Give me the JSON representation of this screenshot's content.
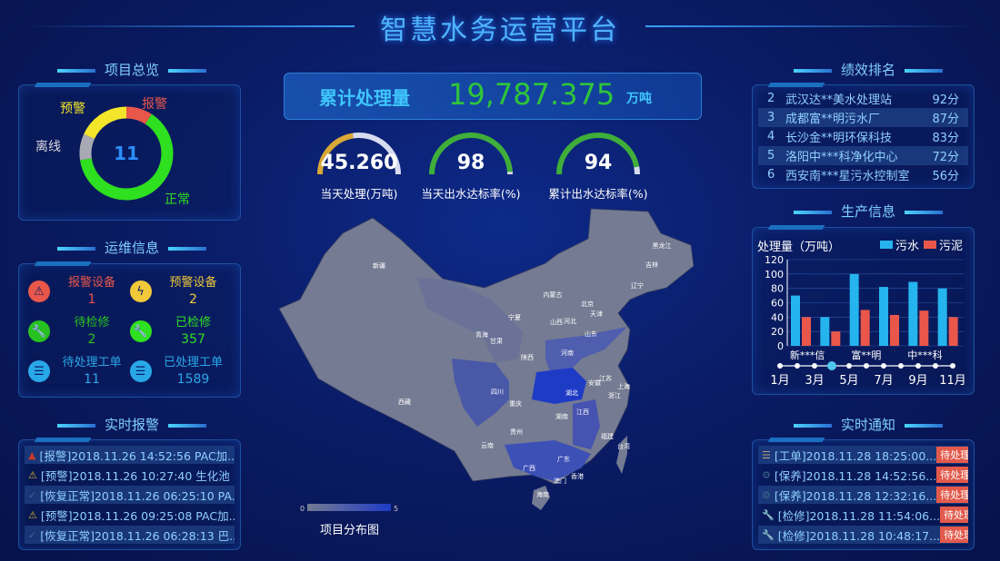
{
  "title": "智慧水务运营平台",
  "overview": {
    "heading": "项目总览",
    "total": "11",
    "segments": [
      {
        "label": "报警",
        "value": 1,
        "color": "#e8574a"
      },
      {
        "label": "正常",
        "value": 7,
        "color": "#2ee01f"
      },
      {
        "label": "离线",
        "value": 1,
        "color": "#a9a9b3"
      },
      {
        "label": "预警",
        "value": 2,
        "color": "#f3e52a"
      }
    ]
  },
  "ops": {
    "heading": "运维信息",
    "items": [
      {
        "label": "报警设备",
        "value": "1",
        "color": "#e8574a",
        "icon": "alarm-light-icon"
      },
      {
        "label": "预警设备",
        "value": "2",
        "color": "#f0c83a",
        "icon": "warning-light-icon"
      },
      {
        "label": "待检修",
        "value": "2",
        "color": "#27c21f",
        "icon": "wrench-icon"
      },
      {
        "label": "已检修",
        "value": "357",
        "color": "#2ee01f",
        "icon": "wrench-icon"
      },
      {
        "label": "待处理工单",
        "value": "11",
        "color": "#29a8e8",
        "icon": "document-icon"
      },
      {
        "label": "已处理工单",
        "value": "1589",
        "color": "#29a8e8",
        "icon": "document-icon"
      }
    ]
  },
  "alarms": {
    "heading": "实时报警",
    "items": [
      {
        "text": "[报警]2018.11.26 14:52:56 PAC加...",
        "icon": "alarm-icon"
      },
      {
        "text": "[预警]2018.11.26 10:27:40 生化池 ...",
        "icon": "warning-icon"
      },
      {
        "text": "[恢复正常]2018.11.26 06:25:10 PA...",
        "icon": "check-icon"
      },
      {
        "text": "[预警]2018.11.26 09:25:08 PAC加...",
        "icon": "warning-icon"
      },
      {
        "text": "[恢复正常]2018.11.26 06:28:13 巴...",
        "icon": "check-icon"
      }
    ]
  },
  "total": {
    "label": "累计处理量",
    "value": "19,787.375",
    "unit": "万吨"
  },
  "gauges": [
    {
      "value": "45.260",
      "label": "当天处理(万吨)",
      "fraction": 0.45,
      "color": "#d9a836"
    },
    {
      "value": "98",
      "label": "当天出水达标率(%)",
      "fraction": 0.98,
      "color": "#3fae3a"
    },
    {
      "value": "94",
      "label": "累计出水达标率(%)",
      "fraction": 0.94,
      "color": "#3fae3a"
    }
  ],
  "map": {
    "title": "项目分布图",
    "legend_min": "0",
    "legend_max": "5",
    "provinces": [
      "新疆",
      "西藏",
      "青海",
      "甘肃",
      "宁夏",
      "内蒙古",
      "黑龙江",
      "吉林",
      "辽宁",
      "北京",
      "天津",
      "河北",
      "山西",
      "山东",
      "河南",
      "陕西",
      "四川",
      "重庆",
      "湖北",
      "安徽",
      "江苏",
      "上海",
      "浙江",
      "湖南",
      "江西",
      "贵州",
      "云南",
      "广西",
      "广东",
      "福建",
      "台湾",
      "香港",
      "澳门",
      "海南"
    ]
  },
  "ranking": {
    "heading": "绩效排名",
    "items": [
      {
        "rank": "2",
        "name": "武汉达**美水处理站",
        "score": "92分"
      },
      {
        "rank": "3",
        "name": "成都富**明污水厂",
        "score": "87分"
      },
      {
        "rank": "4",
        "name": "长沙金**明环保科技",
        "score": "83分"
      },
      {
        "rank": "5",
        "name": "洛阳中***科净化中心",
        "score": "72分"
      },
      {
        "rank": "6",
        "name": "西安南***星污水控制室",
        "score": "56分"
      }
    ]
  },
  "production": {
    "heading": "生产信息",
    "chart_data": {
      "type": "bar",
      "ylabel": "处理量（万吨）",
      "ylim": [
        0,
        120
      ],
      "yticks": [
        0,
        20,
        40,
        60,
        80,
        100,
        120
      ],
      "categories": [
        "新***信",
        "",
        "富**明",
        "",
        "中***科",
        ""
      ],
      "series": [
        {
          "name": "污水",
          "color": "#25b4ee",
          "values": [
            70,
            40,
            100,
            82,
            89,
            80
          ]
        },
        {
          "name": "污泥",
          "color": "#e8574a",
          "values": [
            40,
            20,
            50,
            43,
            49,
            40
          ]
        }
      ]
    },
    "timeline": {
      "labels": [
        "1月",
        "3月",
        "5月",
        "7月",
        "9月",
        "11月"
      ],
      "points": 11,
      "selected_index": 3
    }
  },
  "notices": {
    "heading": "实时通知",
    "status": "待处理",
    "items": [
      {
        "text": "[工单]2018.11.28 18:25:00...",
        "icon": "document-icon"
      },
      {
        "text": "[保养]2018.11.28 14:52:56...",
        "icon": "maintenance-icon"
      },
      {
        "text": "[保养]2018.11.28 12:32:16...",
        "icon": "maintenance-icon"
      },
      {
        "text": "[检修]2018.11.28 11:54:06...",
        "icon": "wrench-icon"
      },
      {
        "text": "[检修]2018.11.28 10:48:17...",
        "icon": "wrench-icon"
      }
    ]
  }
}
